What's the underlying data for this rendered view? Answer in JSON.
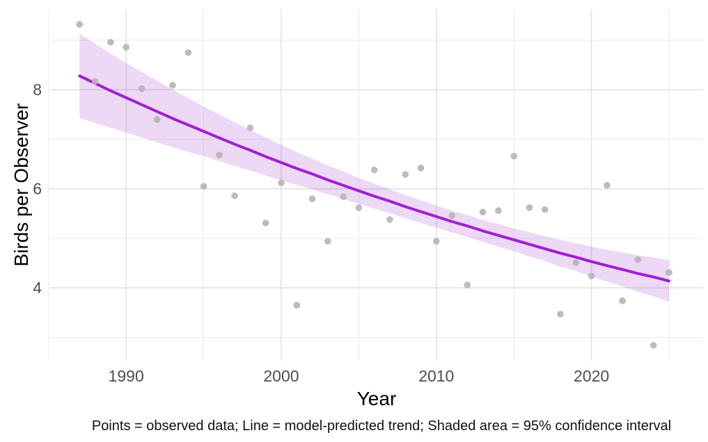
{
  "chart_data": {
    "type": "scatter",
    "title": "",
    "xlabel": "Year",
    "ylabel": "Birds per Observer",
    "caption": "Points = observed data; Line = model-predicted trend; Shaded area = 95% confidence interval",
    "xlim": [
      1985.1,
      2027.2
    ],
    "ylim": [
      2.53,
      9.63
    ],
    "grid": true,
    "legend_position": "none",
    "x_major_ticks": [
      1990,
      2000,
      2010,
      2020
    ],
    "x_minor_gridlines": [
      1985,
      1995,
      2005,
      2015,
      2025
    ],
    "y_major_ticks": [
      4,
      6,
      8
    ],
    "y_minor_gridlines": [
      3,
      5,
      7,
      9
    ],
    "series_legend": [
      {
        "name": "observed points",
        "kind": "scatter"
      },
      {
        "name": "model-predicted trend",
        "kind": "line"
      },
      {
        "name": "95% confidence interval",
        "kind": "band"
      }
    ],
    "years": [
      1987,
      1988,
      1989,
      1990,
      1991,
      1992,
      1993,
      1994,
      1995,
      1996,
      1997,
      1998,
      1999,
      2000,
      2001,
      2002,
      2003,
      2004,
      2005,
      2006,
      2007,
      2008,
      2009,
      2010,
      2011,
      2012,
      2013,
      2014,
      2015,
      2016,
      2017,
      2018,
      2019,
      2020,
      2021,
      2022,
      2023,
      2024,
      2025
    ],
    "observed": [
      9.32,
      8.17,
      8.96,
      8.86,
      8.02,
      7.4,
      8.09,
      8.75,
      6.05,
      6.68,
      5.86,
      7.23,
      5.31,
      6.12,
      3.65,
      5.8,
      4.94,
      5.84,
      5.62,
      6.38,
      5.38,
      6.29,
      6.42,
      4.94,
      5.46,
      4.06,
      5.53,
      5.56,
      6.66,
      5.62,
      5.58,
      3.47,
      4.51,
      4.24,
      6.07,
      3.74,
      4.57,
      2.84,
      4.31
    ],
    "trend": [
      8.28,
      8.13,
      7.98,
      7.84,
      7.7,
      7.56,
      7.42,
      7.29,
      7.16,
      7.03,
      6.9,
      6.78,
      6.65,
      6.53,
      6.41,
      6.3,
      6.18,
      6.07,
      5.96,
      5.85,
      5.75,
      5.64,
      5.54,
      5.44,
      5.34,
      5.25,
      5.15,
      5.06,
      4.97,
      4.88,
      4.79,
      4.7,
      4.62,
      4.53,
      4.45,
      4.37,
      4.29,
      4.22,
      4.14
    ],
    "ci_lower": [
      7.43,
      7.33,
      7.23,
      7.14,
      7.04,
      6.94,
      6.84,
      6.75,
      6.66,
      6.56,
      6.46,
      6.37,
      6.27,
      6.17,
      6.08,
      5.99,
      5.89,
      5.79,
      5.7,
      5.6,
      5.51,
      5.41,
      5.31,
      5.22,
      5.12,
      5.03,
      4.93,
      4.83,
      4.74,
      4.64,
      4.54,
      4.43,
      4.34,
      4.23,
      4.13,
      4.03,
      3.92,
      3.83,
      3.72
    ],
    "ci_upper": [
      9.13,
      8.93,
      8.73,
      8.54,
      8.36,
      8.18,
      8.0,
      7.83,
      7.66,
      7.5,
      7.34,
      7.19,
      7.03,
      6.89,
      6.74,
      6.61,
      6.47,
      6.35,
      6.22,
      6.1,
      5.99,
      5.87,
      5.77,
      5.66,
      5.56,
      5.47,
      5.37,
      5.29,
      5.2,
      5.12,
      5.04,
      4.97,
      4.9,
      4.83,
      4.77,
      4.71,
      4.66,
      4.61,
      4.56
    ],
    "colors": {
      "trend_line": "#A01ED2",
      "band_fill": "#A53CCD",
      "band_opacity": 0.2,
      "point": "#B5B5B5",
      "point_opacity": 0.9,
      "grid_major": "#E2E2E2",
      "grid_minor": "#ECECEC",
      "tick_label": "#4D4D4D",
      "axis_title": "#000000",
      "caption": "#111111",
      "background": "#FFFFFF"
    }
  }
}
